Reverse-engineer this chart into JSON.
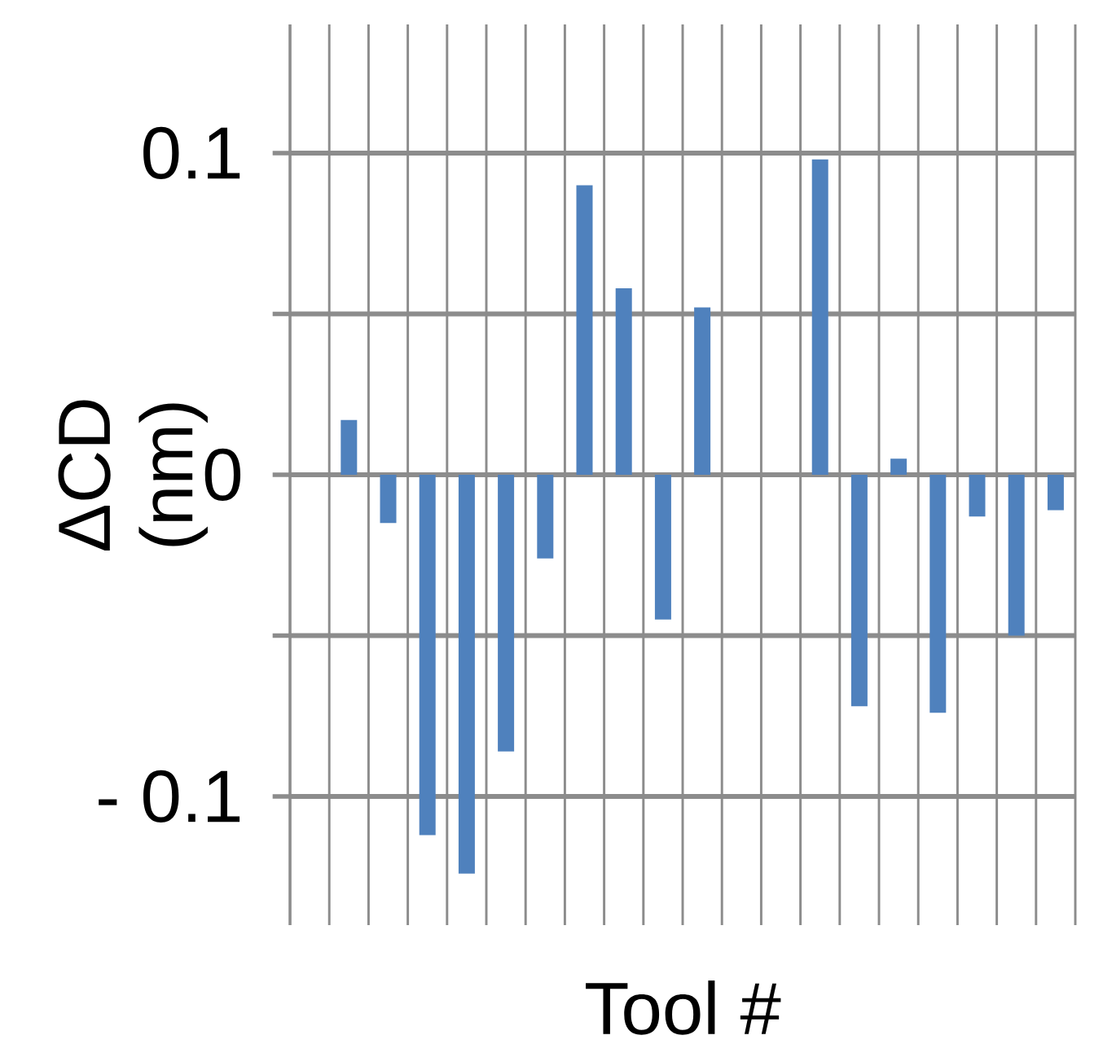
{
  "chart_data": {
    "type": "bar",
    "xlabel": "Tool #",
    "ylabel": "ΔCD (nm)",
    "categories": [
      null,
      null,
      null,
      null,
      null,
      null,
      null,
      null,
      null,
      null,
      null,
      null,
      null,
      null,
      null,
      null,
      null,
      null,
      null,
      null
    ],
    "values": [
      null,
      0.017,
      -0.015,
      -0.112,
      -0.124,
      -0.086,
      -0.026,
      0.09,
      0.058,
      -0.045,
      0.052,
      null,
      null,
      0.098,
      -0.072,
      0.005,
      -0.074,
      -0.013,
      -0.05,
      -0.011
    ],
    "color": "#4f81bd",
    "ylim": [
      -0.14,
      0.14
    ],
    "yticks": [
      {
        "value": -0.1,
        "label": "- 0.1"
      },
      {
        "value": -0.05,
        "label": null
      },
      0,
      {
        "value": 0.05,
        "label": null
      },
      0.1
    ],
    "grid": true
  }
}
